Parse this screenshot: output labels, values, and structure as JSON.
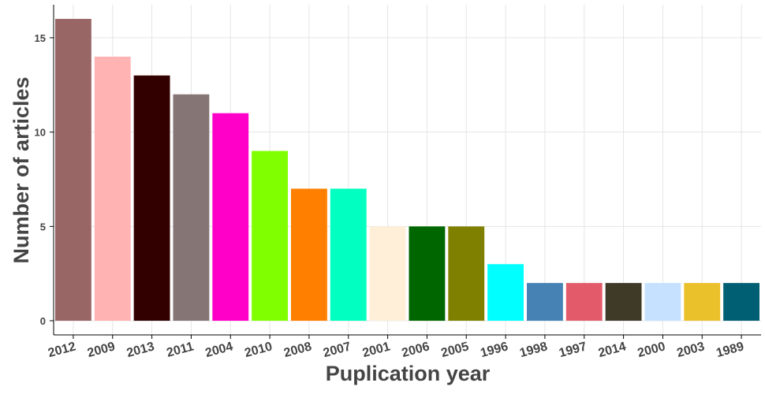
{
  "chart_data": {
    "type": "bar",
    "categories": [
      "2012",
      "2009",
      "2013",
      "2011",
      "2004",
      "2010",
      "2008",
      "2007",
      "2001",
      "2006",
      "2005",
      "1996",
      "1998",
      "1997",
      "2014",
      "2000",
      "2003",
      "1989"
    ],
    "values": [
      16,
      14,
      13,
      12,
      11,
      9,
      7,
      7,
      5,
      5,
      5,
      3,
      2,
      2,
      2,
      2,
      2,
      2
    ],
    "colors": [
      "#996666",
      "#ffb3b3",
      "#330000",
      "#857575",
      "#ff00c8",
      "#80ff00",
      "#ff8000",
      "#00ffc0",
      "#ffefd9",
      "#006600",
      "#808000",
      "#00ffff",
      "#4682b4",
      "#e35b6a",
      "#3f3a28",
      "#c6e1ff",
      "#ebc12b",
      "#005f73"
    ],
    "xlabel": "Puplication year",
    "ylabel": "Number of articles",
    "ylim": [
      -0.75,
      16.75
    ],
    "yticks": [
      0,
      5,
      10,
      15
    ],
    "grid": true,
    "legend": "none"
  }
}
